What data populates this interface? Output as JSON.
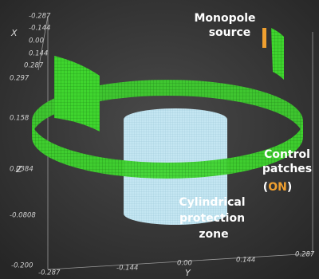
{
  "annotations": {
    "monopole": [
      "Monopole",
      "source"
    ],
    "control": [
      "Control",
      "patches"
    ],
    "control_state": {
      "open": "(",
      "state": "ON",
      "close": ")"
    },
    "cylinder": [
      "Cylindrical",
      "protection",
      "zone"
    ]
  },
  "axes": {
    "x": {
      "label": "X",
      "ticks": [
        "-0.287",
        "-0.144",
        "0.00",
        "0.144",
        "0.287"
      ]
    },
    "z": {
      "label": "Z",
      "ticks": [
        "0.297",
        "0.158",
        "0.0384",
        "-0.0808",
        "-0.200"
      ]
    },
    "y": {
      "label": "Y",
      "ticks": [
        "-0.287",
        "-0.144",
        "0.00",
        "0.144",
        "0.287"
      ]
    }
  }
}
